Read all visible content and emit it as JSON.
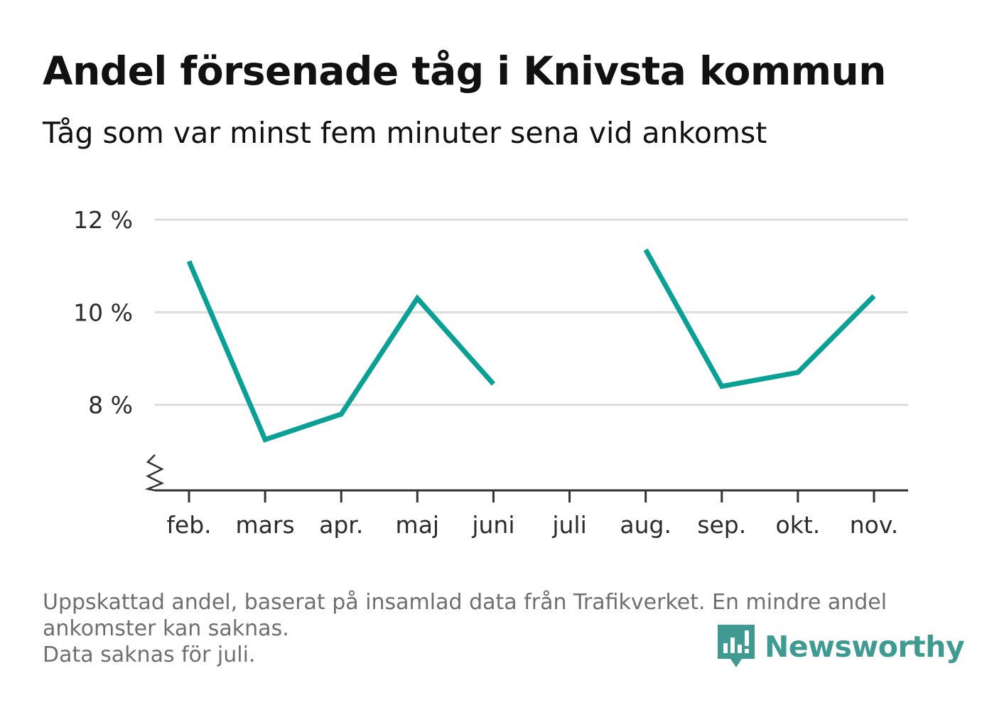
{
  "title": "Andel försenade tåg i Knivsta kommun",
  "subtitle": "Tåg som var minst fem minuter sena vid ankomst",
  "colors": {
    "line": "#0aa096",
    "grid": "#dcdcdc",
    "axis": "#333333",
    "brand": "#3f9b91"
  },
  "chart_data": {
    "type": "line",
    "categories": [
      "feb.",
      "mars",
      "apr.",
      "maj",
      "juni",
      "juli",
      "aug.",
      "sep.",
      "okt.",
      "nov."
    ],
    "series": [
      {
        "values": [
          11.1,
          7.25,
          7.8,
          10.3,
          8.45,
          null,
          11.35,
          8.4,
          8.7,
          10.35
        ]
      }
    ],
    "yticks": [
      8,
      10,
      12
    ],
    "ytick_labels": [
      "8 %",
      "10 %",
      "12 %"
    ],
    "ylim": [
      6.2,
      12
    ],
    "y_axis_break": true,
    "grid": true,
    "legend": "none",
    "xlabel": "",
    "ylabel": ""
  },
  "footnote": {
    "line1": "Uppskattad andel, baserat på insamlad data från Trafikverket. En mindre andel",
    "line2": "ankomster kan saknas.",
    "line3": "Data saknas för juli."
  },
  "brand": {
    "name": "Newsworthy",
    "icon": "newsworthy-logo-icon"
  }
}
